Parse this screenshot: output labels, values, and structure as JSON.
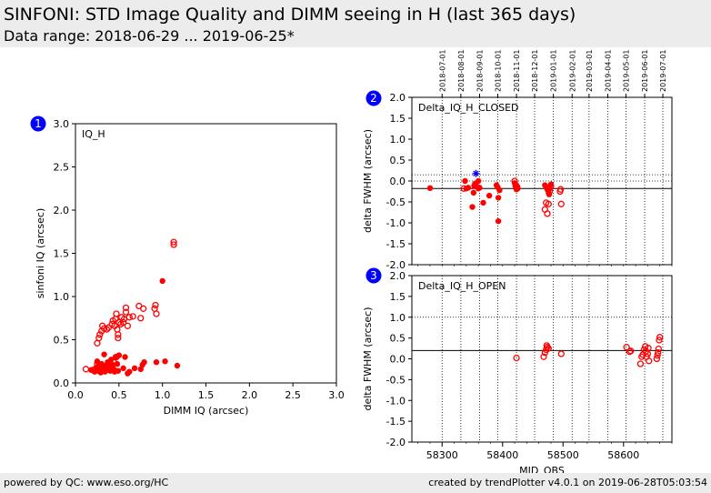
{
  "header": {
    "title": "SINFONI: STD Image Quality and DIMM seeing in H (last 365 days)",
    "subtitle": "Data range: 2018-06-29 ... 2019-06-25*"
  },
  "footer": {
    "left": "powered by QC: www.eso.org/HC",
    "right": "created by trendPlotter v4.0.1 on 2019-06-28T05:03:54"
  },
  "colors": {
    "marker": "#ff0000",
    "badge": "#0000ff",
    "highlight": "#0000ff"
  },
  "chart_data": [
    {
      "type": "scatter",
      "panel": "1",
      "title": "IQ_H",
      "xlabel": "DIMM IQ (arcsec)",
      "ylabel": "sinfoni IQ (arcsec)",
      "xlim": [
        0,
        3
      ],
      "ylim": [
        0,
        3
      ],
      "xticks": [
        0.0,
        0.5,
        1.0,
        1.5,
        2.0,
        2.5,
        3.0
      ],
      "yticks": [
        0.0,
        0.5,
        1.0,
        1.5,
        2.0,
        2.5,
        3.0
      ],
      "series": [
        {
          "marker": "open-circle",
          "points": [
            [
              0.25,
              0.46
            ],
            [
              0.27,
              0.52
            ],
            [
              0.28,
              0.56
            ],
            [
              0.3,
              0.6
            ],
            [
              0.31,
              0.66
            ],
            [
              0.33,
              0.63
            ],
            [
              0.36,
              0.62
            ],
            [
              0.38,
              0.64
            ],
            [
              0.42,
              0.68
            ],
            [
              0.43,
              0.72
            ],
            [
              0.45,
              0.66
            ],
            [
              0.46,
              0.74
            ],
            [
              0.47,
              0.8
            ],
            [
              0.48,
              0.62
            ],
            [
              0.49,
              0.56
            ],
            [
              0.49,
              0.52
            ],
            [
              0.5,
              0.7
            ],
            [
              0.52,
              0.68
            ],
            [
              0.53,
              0.76
            ],
            [
              0.55,
              0.7
            ],
            [
              0.56,
              0.74
            ],
            [
              0.58,
              0.82
            ],
            [
              0.58,
              0.87
            ],
            [
              0.6,
              0.66
            ],
            [
              0.62,
              0.76
            ],
            [
              0.66,
              0.77
            ],
            [
              0.73,
              0.89
            ],
            [
              0.75,
              0.75
            ],
            [
              0.78,
              0.86
            ],
            [
              0.91,
              0.86
            ],
            [
              0.92,
              0.9
            ],
            [
              0.93,
              0.8
            ],
            [
              1.13,
              1.6
            ],
            [
              1.13,
              1.63
            ],
            [
              0.12,
              0.16
            ],
            [
              0.2,
              0.15
            ],
            [
              0.25,
              0.22
            ],
            [
              0.3,
              0.18
            ],
            [
              0.33,
              0.14
            ],
            [
              0.36,
              0.2
            ],
            [
              0.4,
              0.17
            ],
            [
              0.44,
              0.24
            ],
            [
              0.47,
              0.3
            ]
          ]
        },
        {
          "marker": "filled-circle",
          "points": [
            [
              0.18,
              0.15
            ],
            [
              0.22,
              0.13
            ],
            [
              0.24,
              0.18
            ],
            [
              0.25,
              0.25
            ],
            [
              0.26,
              0.14
            ],
            [
              0.27,
              0.21
            ],
            [
              0.28,
              0.17
            ],
            [
              0.29,
              0.12
            ],
            [
              0.3,
              0.22
            ],
            [
              0.31,
              0.16
            ],
            [
              0.32,
              0.2
            ],
            [
              0.33,
              0.33
            ],
            [
              0.34,
              0.13
            ],
            [
              0.35,
              0.17
            ],
            [
              0.36,
              0.15
            ],
            [
              0.37,
              0.24
            ],
            [
              0.38,
              0.19
            ],
            [
              0.39,
              0.22
            ],
            [
              0.4,
              0.14
            ],
            [
              0.41,
              0.27
            ],
            [
              0.42,
              0.18
            ],
            [
              0.43,
              0.21
            ],
            [
              0.44,
              0.16
            ],
            [
              0.45,
              0.13
            ],
            [
              0.46,
              0.3
            ],
            [
              0.48,
              0.22
            ],
            [
              0.49,
              0.14
            ],
            [
              0.5,
              0.32
            ],
            [
              0.55,
              0.17
            ],
            [
              0.57,
              0.3
            ],
            [
              0.6,
              0.11
            ],
            [
              0.62,
              0.13
            ],
            [
              0.68,
              0.17
            ],
            [
              0.75,
              0.16
            ],
            [
              0.77,
              0.21
            ],
            [
              0.79,
              0.24
            ],
            [
              0.93,
              0.24
            ],
            [
              1.0,
              1.18
            ],
            [
              1.03,
              0.25
            ],
            [
              1.17,
              0.2
            ]
          ]
        }
      ]
    },
    {
      "type": "scatter",
      "panel": "2",
      "title": "Delta_IQ_H_CLOSED",
      "xlabel": "",
      "ylabel": "delta FWHM (arcsec)",
      "xlim": [
        58250,
        58680
      ],
      "ylim": [
        -2,
        2
      ],
      "yticks": [
        -2.0,
        -1.5,
        -1.0,
        -0.5,
        0.0,
        0.5,
        1.0,
        1.5,
        2.0
      ],
      "reference_lines": {
        "solid": -0.18,
        "dotted": [
          0.15,
          0.0
        ]
      },
      "date_ticks": [
        "2018-07-01",
        "2018-08-01",
        "2018-09-01",
        "2018-10-01",
        "2018-11-01",
        "2018-12-01",
        "2019-01-01",
        "2019-02-01",
        "2019-03-01",
        "2019-04-01",
        "2019-05-01",
        "2019-06-01",
        "2019-07-01"
      ],
      "date_tick_mjd": [
        58300,
        58331,
        58362,
        58392,
        58423,
        58453,
        58484,
        58515,
        58543,
        58574,
        58604,
        58635,
        58665
      ],
      "series": [
        {
          "marker": "filled-circle",
          "points": [
            [
              58280,
              -0.17
            ],
            [
              58338,
              0.0
            ],
            [
              58340,
              -0.18
            ],
            [
              58343,
              -0.16
            ],
            [
              58350,
              -0.62
            ],
            [
              58352,
              -0.28
            ],
            [
              58353,
              -0.12
            ],
            [
              58355,
              -0.08
            ],
            [
              58360,
              -0.18
            ],
            [
              58362,
              -0.16
            ],
            [
              58360,
              0.0
            ],
            [
              58368,
              -0.52
            ],
            [
              58378,
              -0.35
            ],
            [
              58390,
              -0.1
            ],
            [
              58392,
              -0.15
            ],
            [
              58393,
              -0.4
            ],
            [
              58393,
              -0.96
            ],
            [
              58395,
              -0.22
            ],
            [
              58420,
              -0.05
            ],
            [
              58421,
              -0.12
            ],
            [
              58423,
              -0.2
            ],
            [
              58425,
              -0.18
            ],
            [
              58470,
              -0.1
            ],
            [
              58472,
              -0.14
            ],
            [
              58474,
              -0.2
            ],
            [
              58476,
              -0.28
            ],
            [
              58477,
              -0.32
            ],
            [
              58478,
              -0.18
            ],
            [
              58480,
              -0.08
            ]
          ]
        },
        {
          "marker": "open-circle",
          "points": [
            [
              58336,
              -0.18
            ],
            [
              58355,
              -0.07
            ],
            [
              58420,
              0.0
            ],
            [
              58422,
              -0.1
            ],
            [
              58424,
              -0.14
            ],
            [
              58470,
              -0.68
            ],
            [
              58472,
              -0.52
            ],
            [
              58474,
              -0.78
            ],
            [
              58476,
              -0.55
            ],
            [
              58478,
              -0.24
            ],
            [
              58480,
              -0.12
            ],
            [
              58495,
              -0.25
            ],
            [
              58496,
              -0.2
            ],
            [
              58497,
              -0.55
            ]
          ]
        },
        {
          "marker": "star",
          "color": "highlight",
          "points": [
            [
              58356,
              0.18
            ]
          ]
        }
      ]
    },
    {
      "type": "scatter",
      "panel": "3",
      "title": "Delta_IQ_H_OPEN",
      "xlabel": "MJD_OBS",
      "ylabel": "delta FWHM (arcsec)",
      "xlim": [
        58250,
        58680
      ],
      "ylim": [
        -2,
        2
      ],
      "xticks": [
        58300,
        58400,
        58500,
        58600
      ],
      "yticks": [
        -2.0,
        -1.5,
        -1.0,
        -0.5,
        0.0,
        0.5,
        1.0,
        1.5,
        2.0
      ],
      "reference_lines": {
        "solid": 0.2,
        "dotted": [
          1.0
        ]
      },
      "series": [
        {
          "marker": "open-circle",
          "points": [
            [
              58423,
              0.02
            ],
            [
              58468,
              0.05
            ],
            [
              58470,
              0.15
            ],
            [
              58472,
              0.22
            ],
            [
              58473,
              0.32
            ],
            [
              58474,
              0.28
            ],
            [
              58476,
              0.25
            ],
            [
              58497,
              0.12
            ],
            [
              58605,
              0.28
            ],
            [
              58610,
              0.17
            ],
            [
              58612,
              0.19
            ],
            [
              58628,
              -0.12
            ],
            [
              58630,
              0.05
            ],
            [
              58632,
              0.1
            ],
            [
              58634,
              0.22
            ],
            [
              58636,
              0.3
            ],
            [
              58637,
              0.18
            ],
            [
              58638,
              0.05
            ],
            [
              58640,
              0.12
            ],
            [
              58641,
              0.26
            ],
            [
              58642,
              -0.05
            ],
            [
              58655,
              0.0
            ],
            [
              58656,
              0.08
            ],
            [
              58657,
              0.15
            ],
            [
              58658,
              0.24
            ],
            [
              58659,
              0.45
            ],
            [
              58660,
              0.52
            ]
          ]
        }
      ]
    }
  ],
  "badges": [
    "1",
    "2",
    "3"
  ]
}
